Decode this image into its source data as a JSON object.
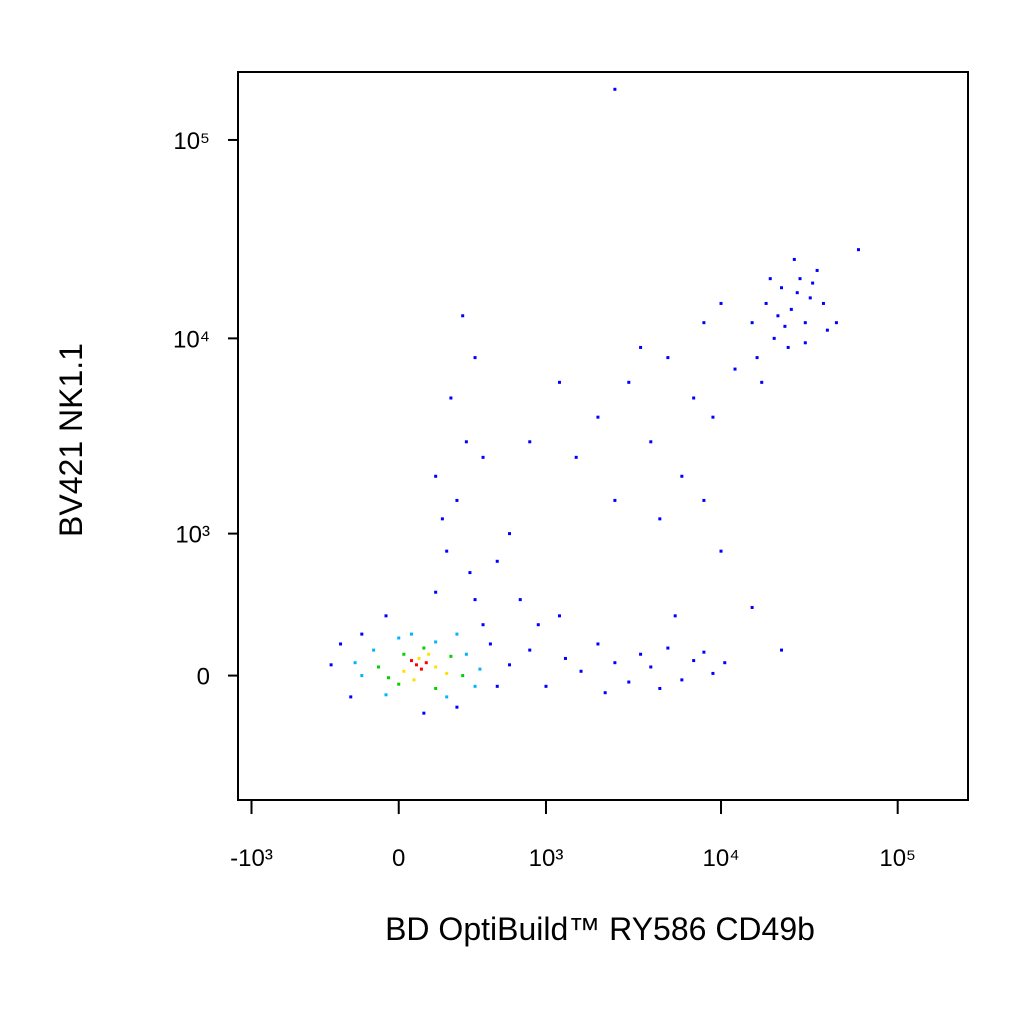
{
  "chart_data": {
    "type": "scatter",
    "x_label": "BD OptiBuild™ RY586 CD49b",
    "y_label": "BV421 NK1.1",
    "xscale": "biexponential",
    "yscale": "biexponential",
    "xlim": [
      -1200,
      250000
    ],
    "ylim": [
      -800,
      220000
    ],
    "xticks": [
      {
        "value": -1000,
        "label": "-10³"
      },
      0,
      {
        "value": 1000,
        "label": "10³"
      },
      {
        "value": 10000,
        "label": "10⁴"
      },
      {
        "value": 100000,
        "label": "10⁵"
      }
    ],
    "yticks": [
      0,
      {
        "value": 1000,
        "label": "10³"
      },
      {
        "value": 10000,
        "label": "10⁴"
      },
      {
        "value": 100000,
        "label": "10⁵"
      }
    ],
    "series": [
      {
        "color": "#0000ff",
        "x": [
          600,
          800,
          1000,
          1300,
          1600,
          2000,
          2500,
          3000,
          3500,
          4000,
          5000,
          6000,
          7000,
          8000,
          9000,
          1200,
          700,
          2200,
          4500,
          10500,
          22000,
          15000,
          900,
          5500,
          -300,
          -200,
          -150,
          -50,
          100,
          250,
          400,
          500,
          350,
          150,
          -250,
          450,
          200,
          250,
          300,
          220,
          350,
          280,
          180,
          400,
          320,
          150,
          500,
          600,
          1500,
          2000,
          3000,
          4000,
          5000,
          7000,
          8000,
          10000,
          2500,
          6000,
          1200,
          3500,
          9000,
          12000,
          800,
          4500,
          8000,
          10000,
          2500,
          15000,
          18000,
          20000,
          22000,
          25000,
          28000,
          30000,
          32000,
          35000,
          24000,
          26000,
          19000,
          16000,
          38000,
          40000,
          21000,
          27000,
          30000,
          23000,
          33000,
          60000,
          17000,
          45000
        ],
        "y": [
          50,
          120,
          -50,
          80,
          20,
          150,
          60,
          -30,
          100,
          40,
          130,
          -20,
          70,
          110,
          10,
          300,
          400,
          -80,
          -60,
          60,
          120,
          350,
          250,
          300,
          50,
          -100,
          200,
          300,
          -180,
          -150,
          250,
          -50,
          400,
          450,
          150,
          150,
          800,
          1500,
          3000,
          5000,
          8000,
          13000,
          1200,
          2500,
          600,
          2000,
          700,
          1000,
          2500,
          4000,
          6000,
          3000,
          8000,
          5000,
          12000,
          15000,
          1500,
          2000,
          6000,
          9000,
          4000,
          7000,
          3000,
          1200,
          1500,
          800,
          180000,
          12000,
          15000,
          10000,
          18000,
          14000,
          20000,
          12000,
          16000,
          22000,
          9000,
          25000,
          20000,
          8000,
          15000,
          11000,
          13000,
          17000,
          9500,
          11500,
          19000,
          28000,
          6000,
          12000
        ]
      },
      {
        "color": "#00b4ff",
        "x": [
          -150,
          -100,
          0,
          150,
          300,
          350,
          200,
          -50,
          50,
          250,
          -180,
          380
        ],
        "y": [
          0,
          120,
          180,
          160,
          100,
          -50,
          -100,
          -90,
          200,
          200,
          60,
          30
        ]
      },
      {
        "color": "#00d000",
        "x": [
          -80,
          0,
          100,
          220,
          280,
          150,
          20,
          -40
        ],
        "y": [
          40,
          -40,
          130,
          90,
          0,
          -60,
          100,
          -10
        ]
      },
      {
        "color": "#ffe000",
        "x": [
          20,
          80,
          150,
          200,
          60,
          120
        ],
        "y": [
          20,
          80,
          40,
          10,
          -20,
          100
        ]
      },
      {
        "color": "#ff0000",
        "x": [
          70,
          110,
          90,
          50
        ],
        "y": [
          50,
          60,
          30,
          70
        ]
      }
    ]
  }
}
